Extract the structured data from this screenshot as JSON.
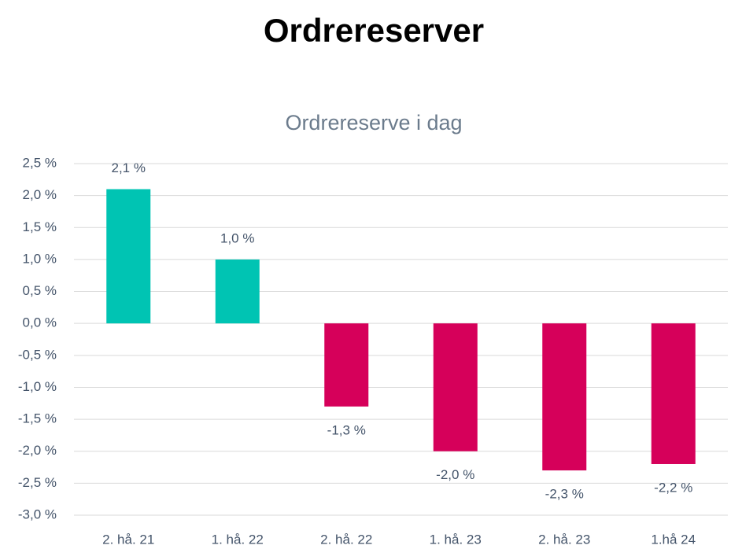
{
  "chart_data": {
    "type": "bar",
    "title": "Ordrereserver",
    "subtitle": "Ordrereserve i dag",
    "categories": [
      "2. hå. 21",
      "1. hå. 22",
      "2. hå. 22",
      "1. hå. 23",
      "2. hå. 23",
      "1.hå 24"
    ],
    "values": [
      2.1,
      1.0,
      -1.3,
      -2.0,
      -2.3,
      -2.2
    ],
    "value_labels": [
      "2,1 %",
      "1,0 %",
      "-1,3 %",
      "-2,0 %",
      "-2,3 %",
      "-2,2 %"
    ],
    "colors": [
      "#00c4b3",
      "#00c4b3",
      "#d6005a",
      "#d6005a",
      "#d6005a",
      "#d6005a"
    ],
    "ylim": [
      -3.0,
      2.5
    ],
    "yticks": [
      {
        "value": 2.5,
        "label": "2,5 %"
      },
      {
        "value": 2.0,
        "label": "2,0 %"
      },
      {
        "value": 1.5,
        "label": "1,5 %"
      },
      {
        "value": 1.0,
        "label": "1,0 %"
      },
      {
        "value": 0.5,
        "label": "0,5 %"
      },
      {
        "value": 0.0,
        "label": "0,0 %"
      },
      {
        "value": -0.5,
        "label": "-0,5 %"
      },
      {
        "value": -1.0,
        "label": "-1,0 %"
      },
      {
        "value": -1.5,
        "label": "-1,5 %"
      },
      {
        "value": -2.0,
        "label": "-2,0 %"
      },
      {
        "value": -2.5,
        "label": "-2,5 %"
      },
      {
        "value": -3.0,
        "label": "-3,0 %"
      }
    ],
    "grid": true
  }
}
